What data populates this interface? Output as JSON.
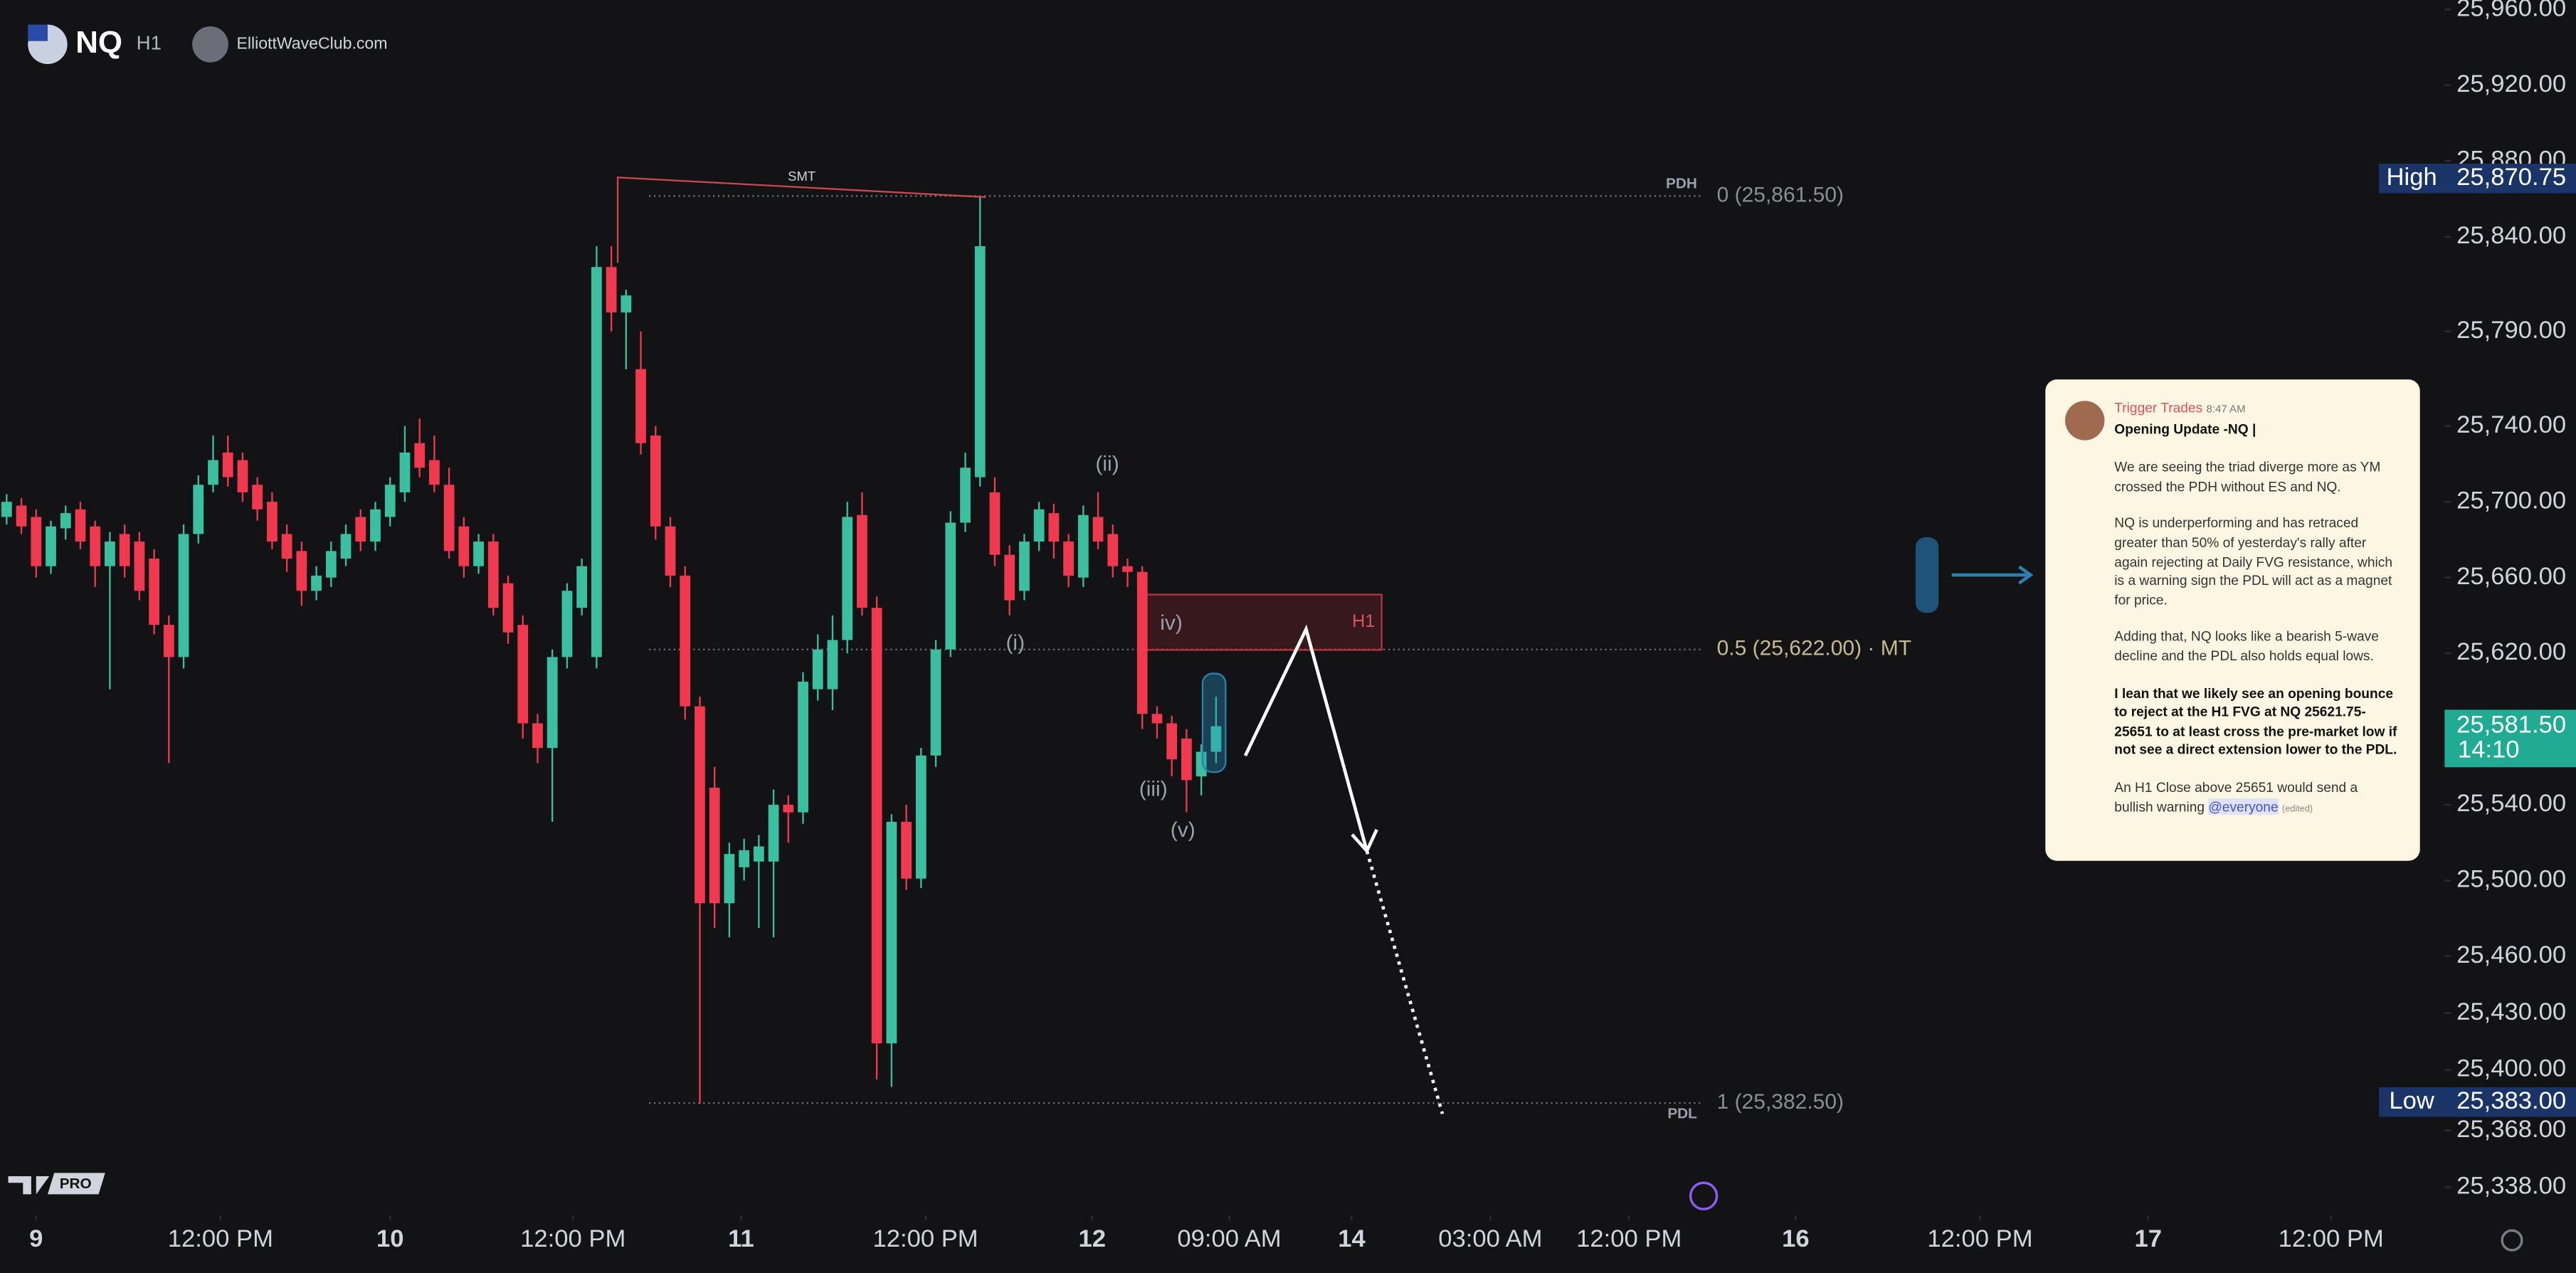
{
  "header": {
    "symbol": "NQ",
    "timeframe": "H1",
    "source": "ElliottWaveClub.com"
  },
  "chart_data": {
    "type": "candlestick",
    "up_color": "#3bbf9f",
    "down_color": "#f0394f",
    "x": [
      0,
      1,
      2,
      3,
      4,
      5,
      6,
      7,
      8,
      9,
      10,
      11,
      12,
      13,
      14,
      15,
      16,
      17,
      18,
      19,
      20,
      21,
      22,
      23,
      24,
      25,
      26,
      27,
      28,
      29,
      30,
      31,
      32,
      33,
      34,
      35,
      36,
      37,
      38,
      39,
      40,
      41,
      42,
      43,
      44,
      45,
      46,
      47,
      48,
      49,
      50,
      51,
      52,
      53,
      54,
      55,
      56,
      57,
      58,
      59,
      60,
      61,
      62,
      63,
      64,
      65,
      66,
      67,
      68,
      69,
      70,
      71,
      72,
      73,
      74,
      75,
      76,
      77,
      78,
      79,
      80,
      81,
      82
    ],
    "open": [
      25692,
      25698,
      25692,
      25666,
      25686,
      25696,
      25687,
      25666,
      25683,
      25679,
      25670,
      25635,
      25618,
      25683,
      25709,
      25726,
      25722,
      25709,
      25700,
      25683,
      25674,
      25653,
      25660,
      25670,
      25692,
      25679,
      25692,
      25705,
      25731,
      25722,
      25709,
      25687,
      25666,
      25679,
      25657,
      25635,
      25583,
      25570,
      25618,
      25644,
      25618,
      25824,
      25800,
      25770,
      25735,
      25687,
      25661,
      25592,
      25549,
      25488,
      25507,
      25510,
      25510,
      25540,
      25536,
      25601,
      25601,
      25627,
      25693,
      25644,
      25414,
      25531,
      25501,
      25566,
      25622,
      25689,
      25713,
      25705,
      25672,
      25653,
      25679,
      25694,
      25679,
      25660,
      25692,
      25683,
      25666,
      25663,
      25588,
      25583,
      25575,
      25555,
      25568
    ],
    "high": [
      25704,
      25702,
      25696,
      25690,
      25698,
      25700,
      25690,
      25684,
      25688,
      25684,
      25675,
      25640,
      25688,
      25714,
      25735,
      25735,
      25726,
      25713,
      25705,
      25688,
      25679,
      25666,
      25679,
      25688,
      25696,
      25700,
      25713,
      25740,
      25744,
      25735,
      25718,
      25692,
      25683,
      25683,
      25661,
      25640,
      25588,
      25622,
      25657,
      25670,
      25835,
      25835,
      25812,
      25790,
      25740,
      25692,
      25666,
      25597,
      25560,
      25520,
      25522,
      25524,
      25548,
      25545,
      25610,
      25630,
      25640,
      25700,
      25705,
      25650,
      25535,
      25540,
      25570,
      25627,
      25695,
      25726,
      25861.5,
      25713,
      25677,
      25683,
      25700,
      25699,
      25683,
      25698,
      25705,
      25688,
      25670,
      25666,
      25592,
      25587,
      25580,
      25572,
      25597
    ],
    "low": [
      25688,
      25683,
      25660,
      25662,
      25680,
      25675,
      25655,
      25601,
      25660,
      25648,
      25630,
      25562,
      25612,
      25678,
      25705,
      25708,
      25700,
      25690,
      25675,
      25663,
      25645,
      25648,
      25655,
      25666,
      25674,
      25674,
      25687,
      25700,
      25713,
      25705,
      25670,
      25660,
      25662,
      25640,
      25625,
      25575,
      25562,
      25531,
      25612,
      25640,
      25612,
      25790,
      25770,
      25725,
      25680,
      25655,
      25585,
      25382,
      25475,
      25470,
      25500,
      25475,
      25470,
      25520,
      25530,
      25595,
      25590,
      25620,
      25640,
      25395,
      25391,
      25495,
      25496,
      25560,
      25618,
      25684,
      25708,
      25666,
      25640,
      25648,
      25674,
      25670,
      25655,
      25655,
      25675,
      25660,
      25655,
      25580,
      25575,
      25555,
      25536,
      25545,
      25562
    ],
    "close": [
      25700,
      25687,
      25666,
      25687,
      25694,
      25679,
      25666,
      25679,
      25666,
      25653,
      25635,
      25618,
      25683,
      25709,
      25722,
      25713,
      25705,
      25696,
      25679,
      25670,
      25653,
      25661,
      25674,
      25683,
      25679,
      25696,
      25709,
      25726,
      25718,
      25709,
      25674,
      25666,
      25679,
      25644,
      25631,
      25583,
      25570,
      25618,
      25653,
      25666,
      25824,
      25800,
      25809,
      25731,
      25687,
      25661,
      25592,
      25488,
      25488,
      25514,
      25516,
      25518,
      25540,
      25536,
      25605,
      25622,
      25627,
      25692,
      25644,
      25414,
      25531,
      25501,
      25566,
      25622,
      25689,
      25718,
      25835,
      25672,
      25648,
      25679,
      25696,
      25679,
      25661,
      25693,
      25679,
      25666,
      25663,
      25588,
      25583,
      25564,
      25553,
      25568,
      25581.5
    ],
    "xlim": [
      -0.45,
      165.3
    ],
    "xticks": [
      {
        "value": 2,
        "label": "9"
      },
      {
        "value": 14.5,
        "label": "12:00 PM"
      },
      {
        "value": 26,
        "label": "10"
      },
      {
        "value": 38.4,
        "label": "12:00 PM"
      },
      {
        "value": 49.8,
        "label": "11"
      },
      {
        "value": 62.3,
        "label": "12:00 PM"
      },
      {
        "value": 73.6,
        "label": "12"
      },
      {
        "value": 82.9,
        "label": "09:00 AM"
      },
      {
        "value": 91.2,
        "label": "14"
      },
      {
        "value": 100.6,
        "label": "03:00 AM"
      },
      {
        "value": 110,
        "label": "12:00 PM"
      },
      {
        "value": 121.3,
        "label": "16"
      },
      {
        "value": 133.8,
        "label": "12:00 PM"
      },
      {
        "value": 145.2,
        "label": "17"
      },
      {
        "value": 157.6,
        "label": "12:00 PM"
      }
    ],
    "ylim": [
      25323,
      25965
    ],
    "yticks": [
      {
        "value": 25960,
        "label": "25,960.00"
      },
      {
        "value": 25920,
        "label": "25,920.00"
      },
      {
        "value": 25880,
        "label": "25,880.00"
      },
      {
        "value": 25840,
        "label": "25,840.00"
      },
      {
        "value": 25790,
        "label": "25,790.00"
      },
      {
        "value": 25740,
        "label": "25,740.00"
      },
      {
        "value": 25700,
        "label": "25,700.00"
      },
      {
        "value": 25660,
        "label": "25,660.00"
      },
      {
        "value": 25620,
        "label": "25,620.00"
      },
      {
        "value": 25540,
        "label": "25,540.00"
      },
      {
        "value": 25500,
        "label": "25,500.00"
      },
      {
        "value": 25460,
        "label": "25,460.00"
      },
      {
        "value": 25430,
        "label": "25,430.00"
      },
      {
        "value": 25400,
        "label": "25,400.00"
      },
      {
        "value": 25368,
        "label": "25,368.00"
      },
      {
        "value": 25338,
        "label": "25,338.00"
      }
    ],
    "price_labels": [
      {
        "value": 25870.75,
        "label": "25,870.75",
        "tag": "High"
      },
      {
        "value": 25383,
        "label": "25,383.00",
        "tag": "Low"
      }
    ],
    "last_price": {
      "value": 25581.5,
      "label": "25,581.50",
      "countdown": "14:10"
    },
    "levels": [
      {
        "value": 25861.5,
        "label": "0 (25,861.50)",
        "tag": "PDH"
      },
      {
        "value": 25622,
        "label": "0.5 (25,622.00) · MT"
      },
      {
        "value": 25382.5,
        "label": "1 (25,382.50)",
        "tag": "PDL"
      }
    ],
    "zones": [
      {
        "low": 25621.75,
        "high": 25651,
        "label": "H1"
      }
    ],
    "annotations": [
      "SMT",
      "(i)",
      "(ii)",
      "(iii)",
      "iv)",
      "(v)"
    ]
  },
  "watermark": "PRO",
  "post": {
    "author": "Trigger Trades",
    "time": "8:47 AM",
    "title": "Opening Update -NQ |",
    "paragraphs": [
      "We are seeing the triad diverge more as YM crossed the PDH without ES and NQ.",
      "NQ is underperforming and has retraced greater than 50% of yesterday's rally after again rejecting at Daily FVG resistance, which is a warning sign the PDL will act as a magnet for price.",
      "Adding that, NQ looks like a bearish 5-wave decline and the PDL also holds equal lows.",
      "I lean that we likely see an opening bounce to reject at the H1 FVG at NQ 25621.75-25651 to at least cross the pre-market low if not see a direct extension lower to the PDL.",
      "An H1 Close above 25651 would send a bullish warning"
    ],
    "mention": "@everyone",
    "edited": "(edited)"
  }
}
